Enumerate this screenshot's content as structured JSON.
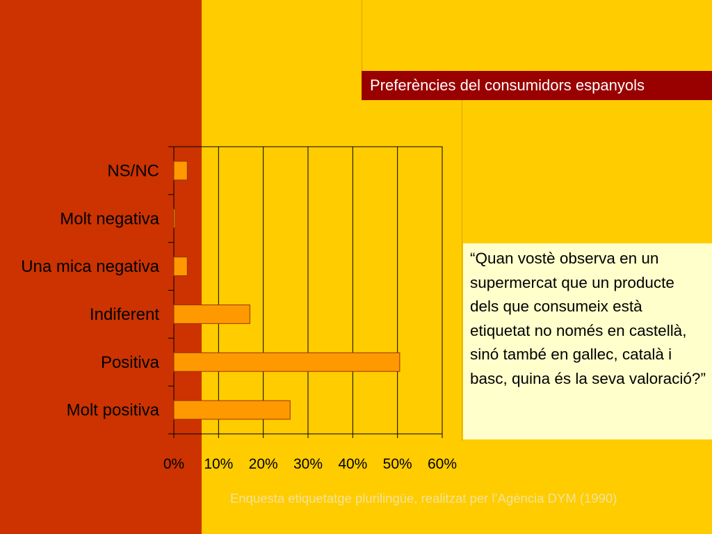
{
  "title": "Preferències del consumidors espanyols",
  "quote": "“Quan vostè observa en un supermercat que un producte dels que consumeix està etiquetat no només en castellà, sinó també en gallec, català i basc, quina és la seva valoració?”",
  "source": "Enquesta etiquetatge plurilingüe, realitzat per l’Agència DYM (1990)",
  "colors": {
    "left_band": "#cc3300",
    "background": "#ffcc00",
    "title_bar": "#990000",
    "quote_box": "#ffffcc",
    "bar_fill": "#ff9900",
    "bar_stroke": "#993300"
  },
  "chart_data": {
    "type": "bar",
    "orientation": "horizontal",
    "categories": [
      "NS/NC",
      "Molt negativa",
      "Una mica negativa",
      "Indiferent",
      "Positiva",
      "Molt positiva"
    ],
    "values": [
      3,
      0.3,
      3,
      17,
      50.5,
      26
    ],
    "xlim": [
      0,
      60
    ],
    "xticks": [
      "0%",
      "10%",
      "20%",
      "30%",
      "40%",
      "50%",
      "60%"
    ],
    "grid": true
  }
}
